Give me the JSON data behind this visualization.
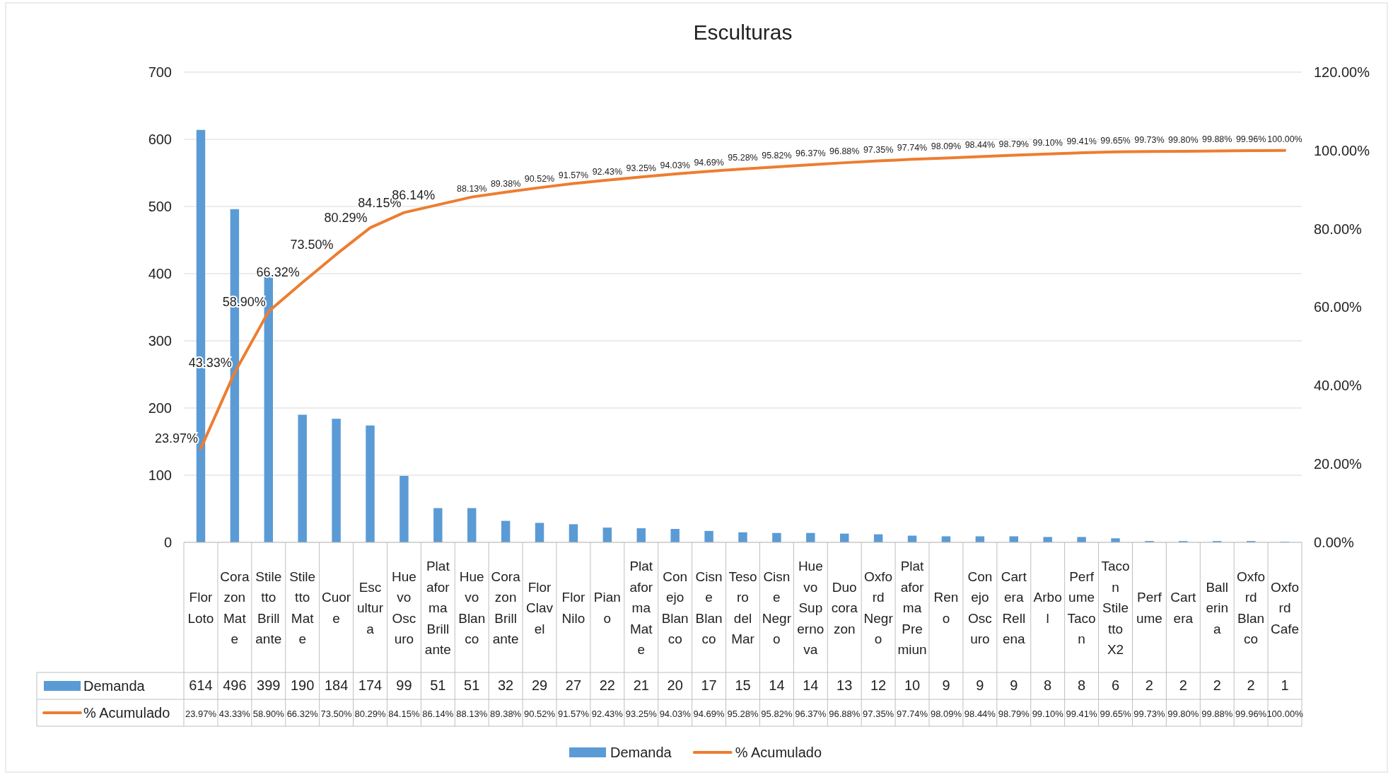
{
  "chart_data": {
    "type": "bar",
    "title": "Esculturas",
    "categories": [
      "Flor Loto",
      "Corazon Mate",
      "Stiletto Brillante",
      "Stiletto Mate",
      "Cuore",
      "Escultura",
      "Huevo Oscuro",
      "Plataforma Brillante",
      "Huevo Blanco",
      "Corazon Brillante",
      "Flor Clavel",
      "Flor Nilo",
      "Piano",
      "Plataforma Mate",
      "Conejo Blanco",
      "Cisne Blanco",
      "Tesoro del Mar",
      "Cisne Negro",
      "Huevo Supernova",
      "Duo corazon",
      "Oxford Negro",
      "Plataforma Premiun",
      "Reno",
      "Conejo Oscuro",
      "Cartera Rellena",
      "Arbol",
      "Perfume Tacon",
      "Tacon Stiletto X2",
      "Perfume",
      "Cartera",
      "Ballerina",
      "Oxford Blanco",
      "Oxford Cafe"
    ],
    "series": [
      {
        "name": "Demanda",
        "color": "#5b9bd5",
        "values": [
          614,
          496,
          399,
          190,
          184,
          174,
          99,
          51,
          51,
          32,
          29,
          27,
          22,
          21,
          20,
          17,
          15,
          14,
          14,
          13,
          12,
          10,
          9,
          9,
          9,
          8,
          8,
          6,
          2,
          2,
          2,
          2,
          1
        ]
      },
      {
        "name": "% Acumulado",
        "type": "line",
        "axis": "y2",
        "color": "#ed7d31",
        "values": [
          23.97,
          43.33,
          58.9,
          66.32,
          73.5,
          80.29,
          84.15,
          86.14,
          88.13,
          89.38,
          90.52,
          91.57,
          92.43,
          93.25,
          94.03,
          94.69,
          95.28,
          95.82,
          96.37,
          96.88,
          97.35,
          97.74,
          98.09,
          98.44,
          98.79,
          99.1,
          99.41,
          99.65,
          99.73,
          99.8,
          99.88,
          99.96,
          100.0
        ],
        "value_labels": [
          "23.97%",
          "43.33%",
          "58.90%",
          "66.32%",
          "73.50%",
          "80.29%",
          "84.15%",
          "86.14%",
          "88.13%",
          "89.38%",
          "90.52%",
          "91.57%",
          "92.43%",
          "93.25%",
          "94.03%",
          "94.69%",
          "95.28%",
          "95.82%",
          "96.37%",
          "96.88%",
          "97.35%",
          "97.74%",
          "98.09%",
          "98.44%",
          "98.79%",
          "99.10%",
          "99.41%",
          "99.65%",
          "99.73%",
          "99.80%",
          "99.88%",
          "99.96%",
          "100.00%"
        ]
      }
    ],
    "ylim": [
      0,
      700
    ],
    "yticks": [
      0,
      100,
      200,
      300,
      400,
      500,
      600,
      700
    ],
    "y2lim": [
      0,
      120
    ],
    "y2ticks": [
      {
        "value": 0,
        "label": "0.00%"
      },
      {
        "value": 20,
        "label": "20.00%"
      },
      {
        "value": 40,
        "label": "40.00%"
      },
      {
        "value": 60,
        "label": "60.00%"
      },
      {
        "value": 80,
        "label": "80.00%"
      },
      {
        "value": 100,
        "label": "100.00%"
      },
      {
        "value": 120,
        "label": "120.00%"
      }
    ],
    "grid": "y",
    "legend": "bottom",
    "data_labels": true
  }
}
